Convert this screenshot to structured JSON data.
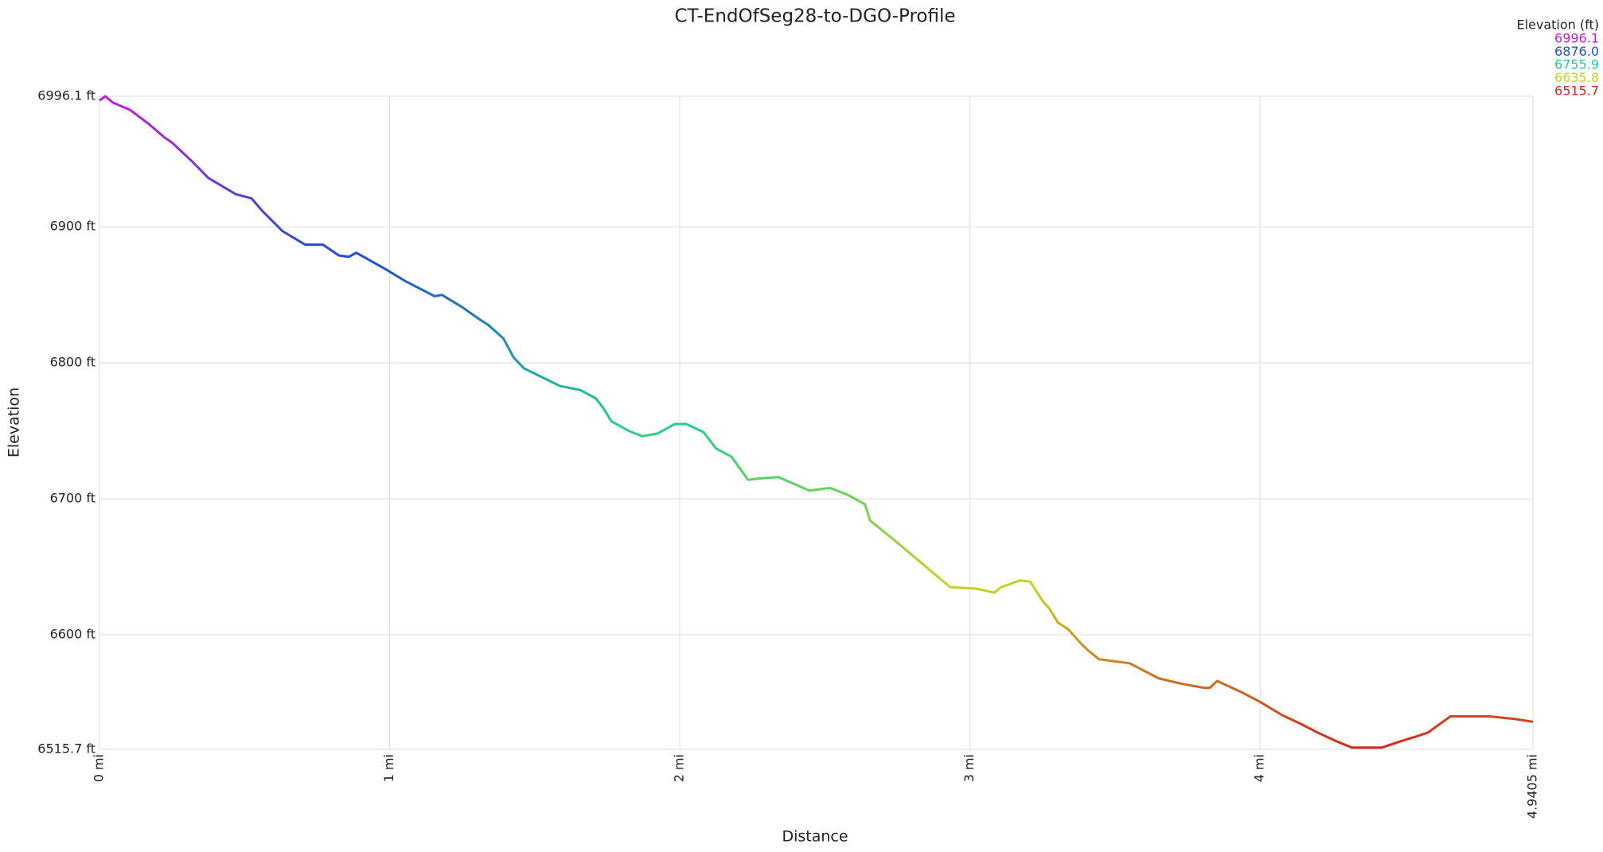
{
  "chart_data": {
    "type": "line",
    "title": "CT-EndOfSeg28-to-DGO-Profile",
    "xlabel": "Distance",
    "ylabel": "Elevation",
    "x": [
      0,
      0.02,
      0.046,
      0.106,
      0.17,
      0.223,
      0.25,
      0.32,
      0.375,
      0.47,
      0.524,
      0.56,
      0.63,
      0.708,
      0.77,
      0.825,
      0.86,
      0.885,
      0.985,
      1.055,
      1.155,
      1.18,
      1.25,
      1.303,
      1.339,
      1.392,
      1.427,
      1.463,
      1.587,
      1.657,
      1.71,
      1.739,
      1.764,
      1.824,
      1.87,
      1.923,
      1.983,
      2.022,
      2.082,
      2.125,
      2.178,
      2.235,
      2.277,
      2.34,
      2.447,
      2.518,
      2.578,
      2.638,
      2.656,
      2.737,
      2.843,
      2.932,
      3.02,
      3.084,
      3.108,
      3.172,
      3.208,
      3.25,
      3.275,
      3.303,
      3.339,
      3.385,
      3.41,
      3.445,
      3.551,
      3.65,
      3.728,
      3.806,
      3.827,
      3.852,
      3.934,
      3.997,
      4.075,
      4.135,
      4.199,
      4.26,
      4.316,
      4.419,
      4.49,
      4.536,
      4.578,
      4.656,
      4.684,
      4.72,
      4.791,
      4.88,
      4.9405
    ],
    "values": [
      6993,
      6996.1,
      6991.5,
      6986,
      6975.7,
      6966,
      6962,
      6948,
      6936,
      6924,
      6921,
      6912,
      6897,
      6887,
      6887,
      6879,
      6878,
      6881,
      6869,
      6860,
      6849,
      6850,
      6841,
      6833,
      6828,
      6818,
      6804,
      6796,
      6783,
      6780,
      6774,
      6766,
      6757,
      6750,
      6746,
      6748,
      6755,
      6755,
      6749,
      6737,
      6731,
      6714,
      6715,
      6716,
      6706,
      6708,
      6703,
      6696,
      6684,
      6670,
      6651,
      6635,
      6634,
      6631,
      6635,
      6640,
      6639,
      6625,
      6619,
      6609,
      6604,
      6593,
      6588,
      6582,
      6579,
      6568,
      6564,
      6561,
      6561,
      6566,
      6558,
      6551,
      6541,
      6535,
      6528,
      6522,
      6517,
      6517,
      6522,
      6525,
      6528,
      6540,
      6540,
      6540,
      6540,
      6538,
      6536
    ],
    "xlim": [
      0,
      4.9405
    ],
    "xticks": [
      {
        "value": 0,
        "label": "0 mi"
      },
      {
        "value": 1,
        "label": "1 mi"
      },
      {
        "value": 2,
        "label": "2 mi"
      },
      {
        "value": 3,
        "label": "3 mi"
      },
      {
        "value": 4,
        "label": "4 mi"
      },
      {
        "value": 4.9405,
        "label": "4.9405 mi"
      }
    ],
    "ylim": [
      6515.7,
      6996.1
    ],
    "yticks": [
      {
        "value": 6515.7,
        "label": "6515.7 ft"
      },
      {
        "value": 6600,
        "label": "6600 ft"
      },
      {
        "value": 6700,
        "label": "6700 ft"
      },
      {
        "value": 6800,
        "label": "6800 ft"
      },
      {
        "value": 6900,
        "label": "6900 ft"
      },
      {
        "value": 6996.1,
        "label": "6996.1 ft"
      }
    ],
    "grid": true,
    "color_legend": {
      "title": "Elevation (ft)",
      "stops": [
        {
          "value": 6996.1,
          "label": "6996.1",
          "color": "#c21fd6"
        },
        {
          "value": 6876,
          "label": "6876.0",
          "color": "#1f4fd0"
        },
        {
          "value": 6755.9,
          "label": "6755.9",
          "color": "#1fd08a"
        },
        {
          "value": 6635.8,
          "label": "6635.8",
          "color": "#c4d41f"
        },
        {
          "value": 6515.7,
          "label": "6515.7",
          "color": "#d4241f"
        }
      ]
    }
  }
}
